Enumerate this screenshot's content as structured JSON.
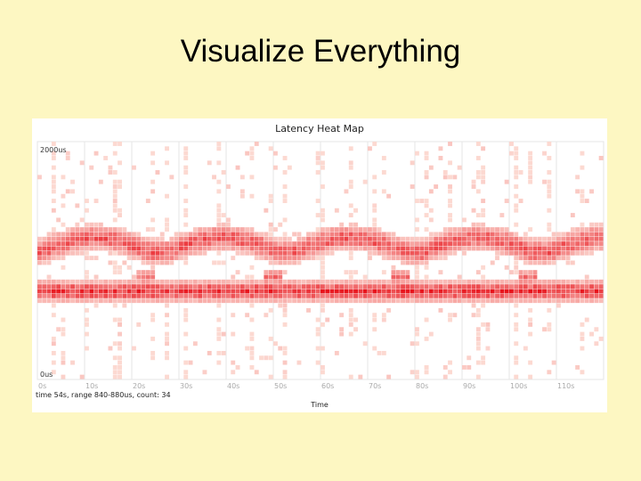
{
  "slide": {
    "title": "Visualize Everything"
  },
  "chart_data": {
    "type": "heatmap",
    "title": "Latency Heat Map",
    "xlabel": "Time",
    "ylabel": "",
    "xlim": [
      0,
      120
    ],
    "ylim": [
      0,
      2000
    ],
    "x_ticks": [
      "0s",
      "10s",
      "20s",
      "30s",
      "40s",
      "50s",
      "60s",
      "70s",
      "80s",
      "90s",
      "100s",
      "110s"
    ],
    "x_tick_values": [
      0,
      10,
      20,
      30,
      40,
      50,
      60,
      70,
      80,
      90,
      100,
      110
    ],
    "y_tick_labels": {
      "top": "2000us",
      "bottom": "0us"
    },
    "grid": true,
    "x_bin_seconds": 1,
    "y_bin_us": 40,
    "color_scale": {
      "low": "#fde3db",
      "high": "#e8141c"
    },
    "bands": [
      {
        "name": "",
        "center_us": 740,
        "spread_us": 70,
        "intensity": 0.95
      },
      {
        "name": "",
        "center_us": 1110,
        "spread_us": 90,
        "intensity": 0.75,
        "periodic_rise_us": 120
      }
    ],
    "selected_cell": {
      "time_s": 54,
      "range": "840-880us",
      "count": 34
    },
    "status_text": "time 54s, range 840-880us, count: 34"
  }
}
